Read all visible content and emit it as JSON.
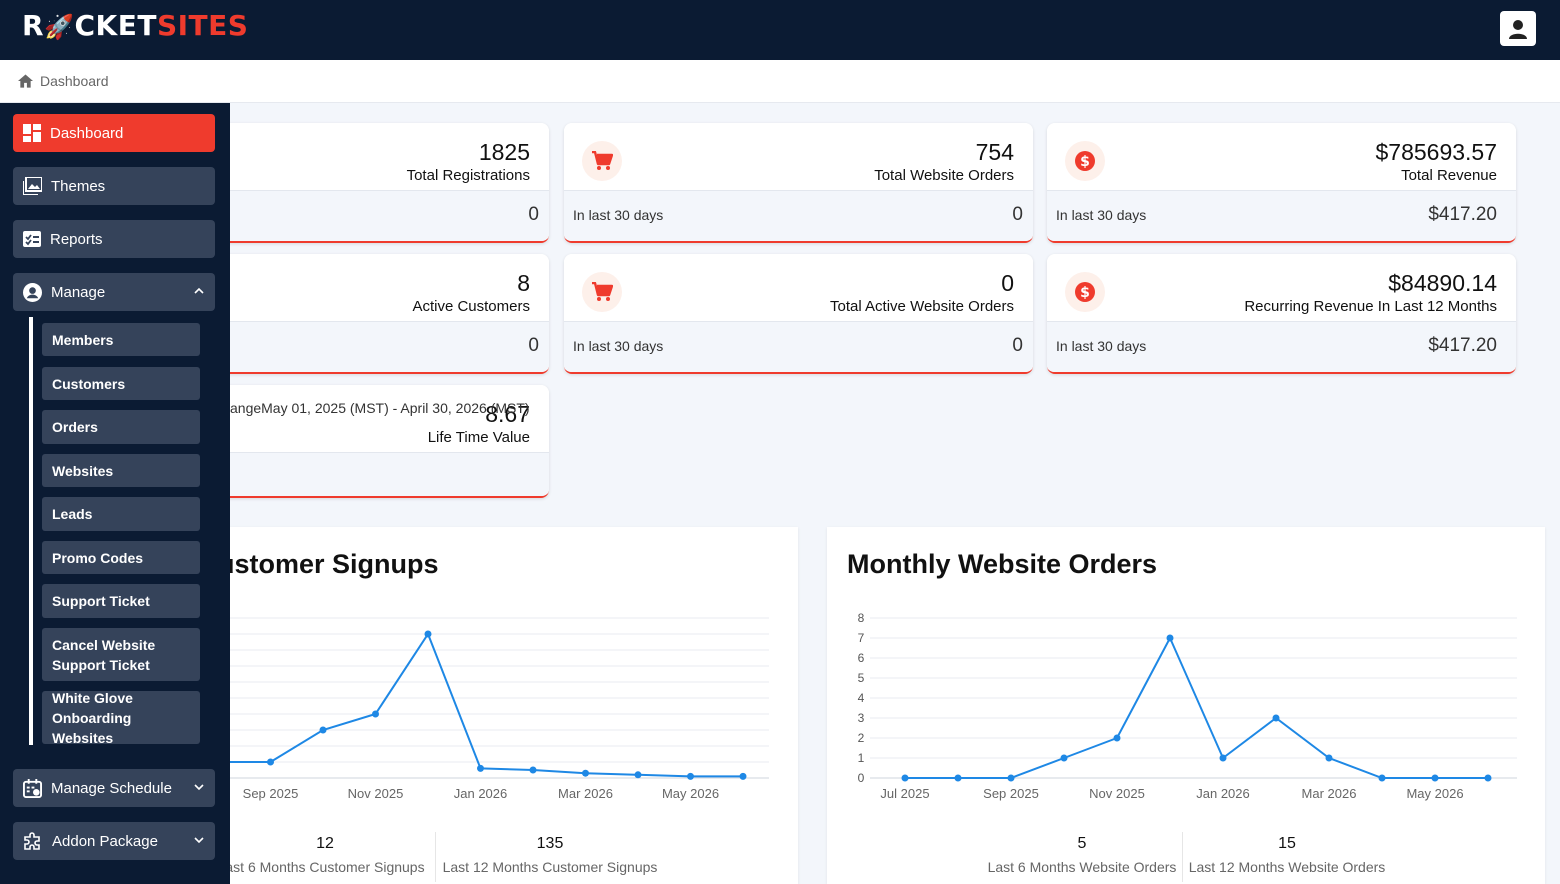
{
  "brand": {
    "part1": "R",
    "part2": "CKET",
    "part3": "SITES"
  },
  "breadcrumb": {
    "label": "Dashboard"
  },
  "sidebar": {
    "items": [
      {
        "label": "Dashboard",
        "icon": "dashboard-icon"
      },
      {
        "label": "Themes",
        "icon": "image-icon"
      },
      {
        "label": "Reports",
        "icon": "report-icon"
      },
      {
        "label": "Manage",
        "icon": "user-circle-icon"
      },
      {
        "label": "Manage Schedule",
        "icon": "calendar-icon"
      },
      {
        "label": "Addon Package",
        "icon": "puzzle-icon"
      }
    ],
    "sub_items": [
      {
        "label": "Members"
      },
      {
        "label": "Customers"
      },
      {
        "label": "Orders"
      },
      {
        "label": "Websites"
      },
      {
        "label": "Leads"
      },
      {
        "label": "Promo Codes"
      },
      {
        "label": "Support Ticket"
      },
      {
        "label": "Cancel Website Support Ticket"
      },
      {
        "label": "White Glove Onboarding Websites"
      }
    ]
  },
  "cards": {
    "registrations": {
      "value": "1825",
      "label": "Total Registrations",
      "sub_value": "0"
    },
    "website_orders": {
      "value": "754",
      "label": "Total Website Orders",
      "sub_label": "In last 30 days",
      "sub_value": "0"
    },
    "revenue": {
      "value": "$785693.57",
      "label": "Total Revenue",
      "sub_label": "In last 30 days",
      "sub_value": "$417.20"
    },
    "active_customers": {
      "value": "8",
      "label": "Active Customers",
      "sub_value": "0"
    },
    "active_orders": {
      "value": "0",
      "label": "Total Active Website Orders",
      "sub_label": "In last 30 days",
      "sub_value": "0"
    },
    "recurring": {
      "value": "$84890.14",
      "label": "Recurring Revenue In Last 12 Months",
      "sub_label": "In last 30 days",
      "sub_value": "$417.20"
    },
    "ltv": {
      "value": "8.67",
      "label": "Life Time Value",
      "sub_label": "angeMay 01, 2025 (MST) - April 30, 2026 (MST)"
    }
  },
  "signups_panel": {
    "title": "ustomer Signups",
    "stat1": {
      "value": "12",
      "label": "ast 6 Months Customer Signups"
    },
    "stat2": {
      "value": "135",
      "label": "Last 12 Months Customer Signups"
    }
  },
  "orders_panel": {
    "title": "Monthly Website Orders",
    "stat1": {
      "value": "5",
      "label": "Last 6 Months Website Orders"
    },
    "stat2": {
      "value": "15",
      "label": "Last 12 Months Website Orders"
    }
  },
  "chart_data": [
    {
      "type": "line",
      "title": "ustomer Signups",
      "x_tick_labels": [
        "Sep 2025",
        "Nov 2025",
        "Jan 2026",
        "Mar 2026",
        "May 2026"
      ],
      "x": [
        "Aug 2025",
        "Sep 2025",
        "Oct 2025",
        "Nov 2025",
        "Dec 2025",
        "Jan 2026",
        "Feb 2026",
        "Mar 2026",
        "Apr 2026",
        "May 2026",
        "Jun 2026"
      ],
      "values": [
        1,
        1,
        3,
        4,
        9,
        0.6,
        0.5,
        0.3,
        0.2,
        0.1,
        0.1
      ],
      "ylim": [
        0,
        10
      ],
      "grid": true,
      "color": "#1e88e5"
    },
    {
      "type": "line",
      "title": "Monthly Website Orders",
      "x_tick_labels": [
        "Jul 2025",
        "Sep 2025",
        "Nov 2025",
        "Jan 2026",
        "Mar 2026",
        "May 2026"
      ],
      "x": [
        "Jul 2025",
        "Aug 2025",
        "Sep 2025",
        "Oct 2025",
        "Nov 2025",
        "Dec 2025",
        "Jan 2026",
        "Feb 2026",
        "Mar 2026",
        "Apr 2026",
        "May 2026",
        "Jun 2026"
      ],
      "values": [
        0,
        0,
        0,
        1,
        2,
        7,
        1,
        3,
        1,
        0,
        0,
        0
      ],
      "y_ticks": [
        0,
        1,
        2,
        3,
        4,
        5,
        6,
        7,
        8
      ],
      "ylim": [
        0,
        8
      ],
      "grid": true,
      "color": "#1e88e5"
    }
  ],
  "colors": {
    "accent": "#ef3b2d",
    "navy": "#0b1b33",
    "nav_item": "#35435a",
    "line": "#1e88e5"
  }
}
